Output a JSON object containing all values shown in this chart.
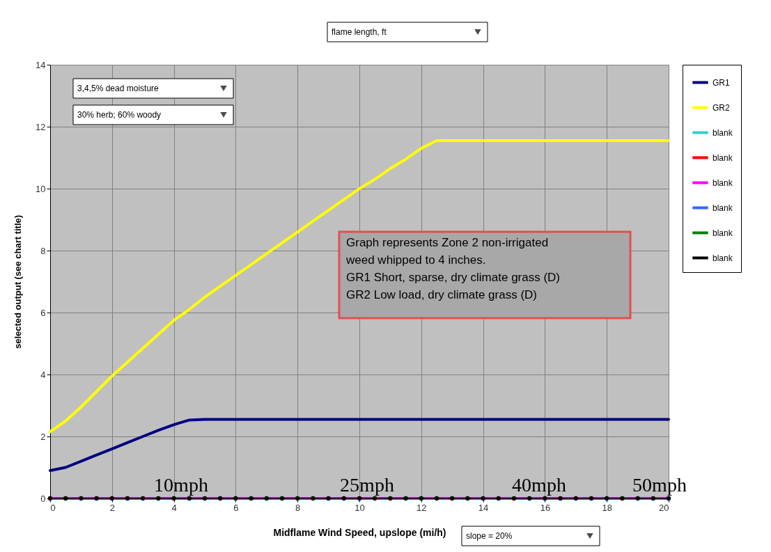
{
  "chart_data": {
    "type": "line",
    "title": "flame length, ft",
    "xlabel": "Midflame Wind Speed, upslope (mi/h)",
    "ylabel": "selected output (see chart title)",
    "x": [
      0,
      0.5,
      1,
      1.5,
      2,
      2.5,
      3,
      3.5,
      4,
      4.5,
      5,
      5.5,
      6,
      6.5,
      7,
      7.5,
      8,
      8.5,
      9,
      9.5,
      10,
      10.5,
      11,
      11.5,
      12,
      12.5,
      13,
      13.5,
      14,
      14.5,
      15,
      15.5,
      16,
      16.5,
      17,
      17.5,
      18,
      18.5,
      19,
      19.5,
      20
    ],
    "series": [
      {
        "name": "GR1",
        "color": "#000080",
        "values": [
          0.9,
          1.0,
          1.2,
          1.4,
          1.6,
          1.8,
          2.0,
          2.2,
          2.38,
          2.53,
          2.55,
          2.55,
          2.55,
          2.55,
          2.55,
          2.55,
          2.55,
          2.55,
          2.55,
          2.55,
          2.55,
          2.55,
          2.55,
          2.55,
          2.55,
          2.55,
          2.55,
          2.55,
          2.55,
          2.55,
          2.55,
          2.55,
          2.55,
          2.55,
          2.55,
          2.55,
          2.55,
          2.55,
          2.55,
          2.55,
          2.55
        ]
      },
      {
        "name": "GR2",
        "color": "#ffff00",
        "values": [
          2.15,
          2.5,
          2.95,
          3.45,
          3.95,
          4.4,
          4.85,
          5.3,
          5.75,
          6.1,
          6.5,
          6.85,
          7.2,
          7.55,
          7.9,
          8.25,
          8.6,
          8.95,
          9.3,
          9.65,
          10.0,
          10.3,
          10.65,
          10.95,
          11.3,
          11.55,
          11.55,
          11.55,
          11.55,
          11.55,
          11.55,
          11.55,
          11.55,
          11.55,
          11.55,
          11.55,
          11.55,
          11.55,
          11.55,
          11.55,
          11.55
        ]
      },
      {
        "name": "blank",
        "color": "#33cccc",
        "values": [
          null,
          null,
          null,
          null,
          null,
          null,
          null,
          null,
          null,
          null,
          null,
          null,
          null,
          null,
          null,
          null,
          null,
          null,
          null,
          null,
          null,
          null,
          null,
          null,
          null,
          null,
          null,
          null,
          null,
          null,
          null,
          null,
          null,
          null,
          null,
          null,
          null,
          null,
          null,
          null,
          null
        ]
      },
      {
        "name": "blank",
        "color": "#ff0000",
        "values": [
          null,
          null,
          null,
          null,
          null,
          null,
          null,
          null,
          null,
          null,
          null,
          null,
          null,
          null,
          null,
          null,
          null,
          null,
          null,
          null,
          null,
          null,
          null,
          null,
          null,
          null,
          null,
          null,
          null,
          null,
          null,
          null,
          null,
          null,
          null,
          null,
          null,
          null,
          null,
          null,
          null
        ]
      },
      {
        "name": "blank",
        "color": "#ff00ff",
        "values": [
          0,
          0,
          0,
          0,
          0,
          0,
          0,
          0,
          0,
          0,
          0,
          0,
          0,
          0,
          0,
          0,
          0,
          0,
          0,
          0,
          0,
          0,
          0,
          0,
          0,
          0,
          0,
          0,
          0,
          0,
          0,
          0,
          0,
          0,
          0,
          0,
          0,
          0,
          0,
          0,
          0
        ]
      },
      {
        "name": "blank",
        "color": "#3366ff",
        "values": [
          null,
          null,
          null,
          null,
          null,
          null,
          null,
          null,
          null,
          null,
          null,
          null,
          null,
          null,
          null,
          null,
          null,
          null,
          null,
          null,
          null,
          null,
          null,
          null,
          null,
          null,
          null,
          null,
          null,
          null,
          null,
          null,
          null,
          null,
          null,
          null,
          null,
          null,
          null,
          null,
          null
        ]
      },
      {
        "name": "blank",
        "color": "#008000",
        "values": [
          null,
          null,
          null,
          null,
          null,
          null,
          null,
          null,
          null,
          null,
          null,
          null,
          null,
          null,
          null,
          null,
          null,
          null,
          null,
          null,
          null,
          null,
          null,
          null,
          null,
          null,
          null,
          null,
          null,
          null,
          null,
          null,
          null,
          null,
          null,
          null,
          null,
          null,
          null,
          null,
          null
        ]
      },
      {
        "name": "blank",
        "color": "#000000",
        "marker": "circle",
        "values": [
          0,
          0,
          0,
          0,
          0,
          0,
          0,
          0,
          0,
          0,
          0,
          0,
          0,
          0,
          0,
          0,
          0,
          0,
          0,
          0,
          0,
          0,
          0,
          0,
          0,
          0,
          0,
          0,
          0,
          0,
          0,
          0,
          0,
          0,
          0,
          0,
          0,
          0,
          0,
          0,
          0
        ]
      }
    ],
    "xlim": [
      0,
      20
    ],
    "xticks": [
      0,
      2,
      4,
      6,
      8,
      10,
      12,
      14,
      16,
      18,
      20
    ],
    "ylim": [
      0,
      14
    ],
    "yticks": [
      0,
      2,
      4,
      6,
      8,
      10,
      12,
      14
    ],
    "grid": true,
    "legend": "right",
    "line_style": "solid",
    "annotations": [
      "3,4,5% dead moisture",
      "30% herb; 60% woody",
      "slope = 20%",
      "Graph represents Zone 2 non-irrigated\nweed whipped to 4 inches.\nGR1 Short, sparse, dry climate grass (D)\nGR2 Low load, dry climate grass (D)",
      "10mph",
      "25mph",
      "40mph",
      "50mph"
    ]
  }
}
